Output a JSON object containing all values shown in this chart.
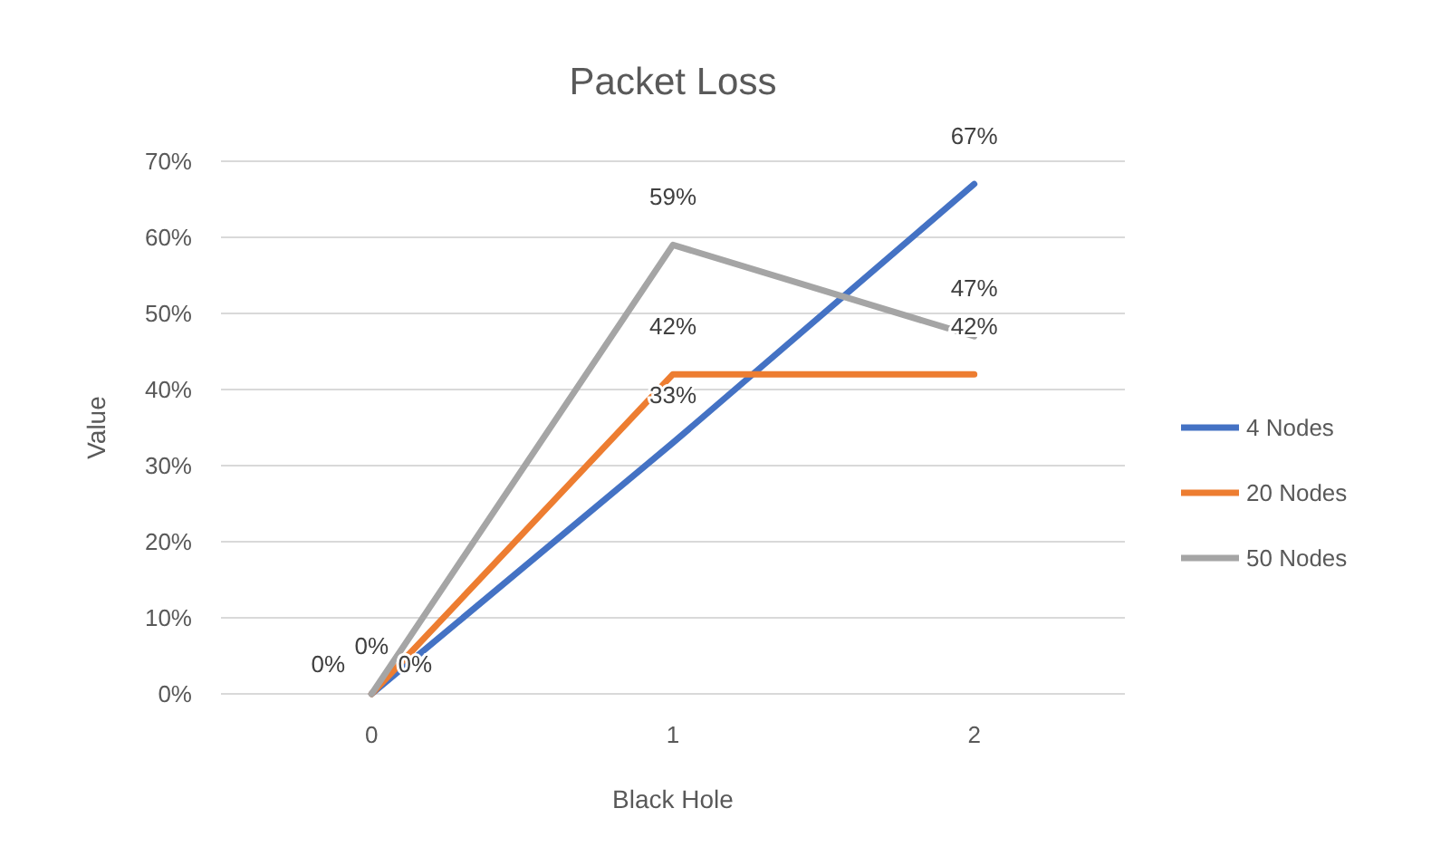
{
  "chart_data": {
    "type": "line",
    "title": "Packet Loss",
    "xlabel": "Black Hole",
    "ylabel": "Value",
    "categories": [
      "0",
      "1",
      "2"
    ],
    "series": [
      {
        "name": "4 Nodes",
        "color": "#4472c4",
        "values": [
          0,
          33,
          67
        ],
        "value_labels": [
          "0%",
          "33%",
          "67%"
        ]
      },
      {
        "name": "20 Nodes",
        "color": "#ed7d31",
        "values": [
          0,
          42,
          42
        ],
        "value_labels": [
          "0%",
          "42%",
          "42%"
        ]
      },
      {
        "name": "50 Nodes",
        "color": "#a5a5a5",
        "values": [
          0,
          59,
          47
        ],
        "value_labels": [
          "0%",
          "59%",
          "47%"
        ]
      }
    ],
    "ylim": [
      0,
      70
    ],
    "yticks": [
      {
        "value": 0,
        "label": "0%"
      },
      {
        "value": 10,
        "label": "10%"
      },
      {
        "value": 20,
        "label": "20%"
      },
      {
        "value": 30,
        "label": "30%"
      },
      {
        "value": 40,
        "label": "40%"
      },
      {
        "value": 50,
        "label": "50%"
      },
      {
        "value": 60,
        "label": "60%"
      },
      {
        "value": 70,
        "label": "70%"
      }
    ],
    "grid": "y",
    "legend": "right",
    "marker": "none",
    "line_style": "solid"
  }
}
